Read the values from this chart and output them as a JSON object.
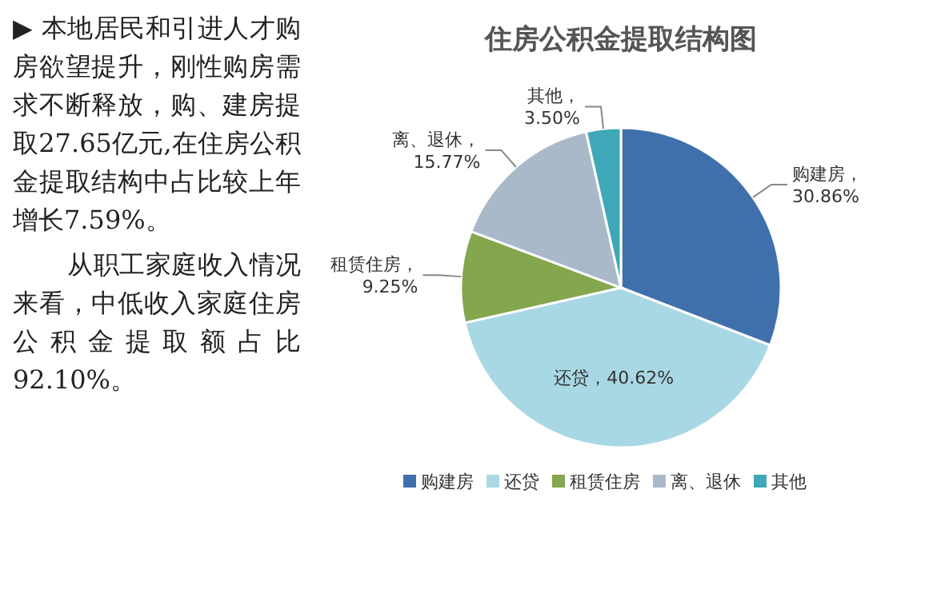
{
  "chart_data": {
    "type": "pie",
    "title": "住房公积金提取结构图",
    "categories": [
      "购建房",
      "还贷",
      "租赁住房",
      "离、退休",
      "其他"
    ],
    "values": [
      30.86,
      40.62,
      9.25,
      15.77,
      3.5
    ],
    "colors": [
      "#4070ac",
      "#a8d8e4",
      "#84a64c",
      "#a9b9c9",
      "#3ea8b8"
    ],
    "value_labels": [
      "购建房，30.86%",
      "还贷，40.62%",
      "租赁住房，9.25%",
      "离、退休，15.77%",
      "其他，3.50%"
    ],
    "legend": "bottom",
    "annotations": [
      "▶ 本地居民和引进人才购房欲望提升，刚性购房需求不断释放，购、建房提取27.65亿元,在住房公积金提取结构中占比较上年增长7.59%。",
      "从职工家庭收入情况来看，中低收入家庭住房公积金提取额占比92.10%。"
    ]
  }
}
